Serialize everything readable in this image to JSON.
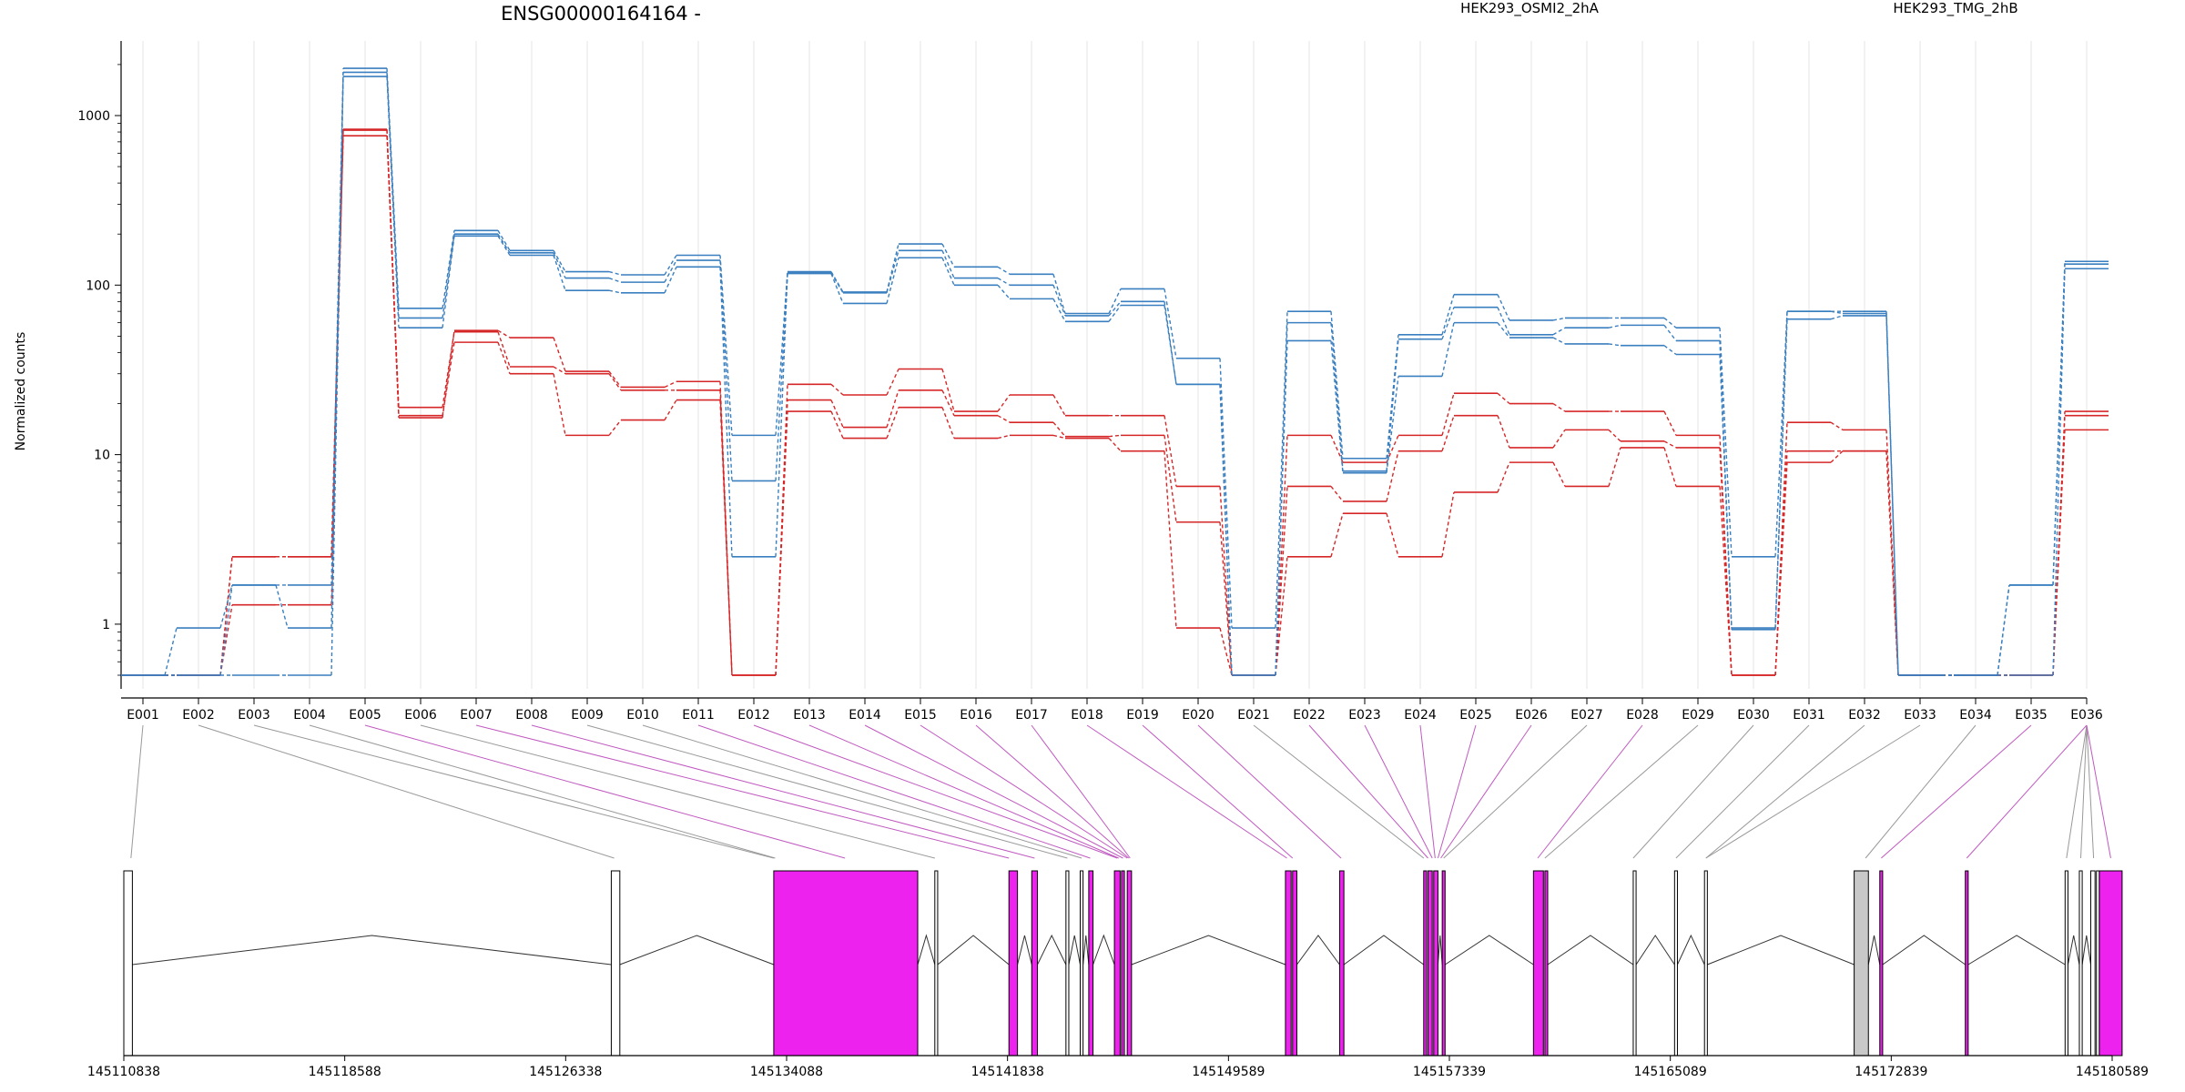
{
  "chart_data": {
    "type": "line",
    "title": "ENSG00000164164 -",
    "ylabel": "Normalized counts",
    "xlabel": "",
    "y_scale": "log",
    "ylim": [
      0.5,
      2500
    ],
    "y_ticks": [
      1,
      10,
      100,
      1000
    ],
    "grid": "vertical",
    "legend_position": "top",
    "categories": [
      "E001",
      "E002",
      "E003",
      "E004",
      "E005",
      "E006",
      "E007",
      "E008",
      "E009",
      "E010",
      "E011",
      "E012",
      "E013",
      "E014",
      "E015",
      "E016",
      "E017",
      "E018",
      "E019",
      "E020",
      "E021",
      "E022",
      "E023",
      "E024",
      "E025",
      "E026",
      "E027",
      "E028",
      "E029",
      "E030",
      "E031",
      "E032",
      "E033",
      "E034",
      "E035",
      "E036"
    ],
    "groups": [
      {
        "name": "HEK293_OSMI2_2hA",
        "color": "#d62728"
      },
      {
        "name": "HEK293_TMG_2hB",
        "color": "#3a7fbf"
      }
    ],
    "series": [
      {
        "group": 0,
        "values": [
          0.5,
          0.5,
          1.3,
          1.3,
          820,
          17,
          46,
          30,
          13,
          16,
          21,
          0.5,
          18,
          12.5,
          19,
          12.5,
          13,
          12.5,
          10.5,
          0.95,
          0.5,
          2.5,
          4.5,
          2.5,
          6,
          9,
          6.5,
          11,
          6.5,
          0.5,
          9,
          10.5,
          0.5,
          0.5,
          0.5,
          14
        ]
      },
      {
        "group": 0,
        "values": [
          0.5,
          0.5,
          2.5,
          2.5,
          830,
          19,
          53,
          33,
          30,
          24,
          24,
          0.5,
          21,
          14.5,
          24,
          17,
          15.5,
          12.8,
          13,
          4,
          0.5,
          6.5,
          5.3,
          10.5,
          17,
          11,
          14,
          12,
          11,
          0.5,
          10.5,
          10.5,
          0.5,
          0.5,
          0.5,
          17
        ]
      },
      {
        "group": 0,
        "values": [
          0.5,
          0.5,
          2.5,
          2.5,
          760,
          16.5,
          54,
          49,
          31,
          25,
          27,
          0.5,
          26,
          22.5,
          32,
          18,
          22.5,
          17,
          17,
          6.5,
          0.5,
          13,
          9,
          13,
          23,
          20,
          18,
          18,
          13,
          0.5,
          15.5,
          14,
          0.5,
          0.5,
          0.5,
          18
        ]
      },
      {
        "group": 1,
        "values": [
          0.5,
          0.95,
          1.7,
          1.7,
          1900,
          73,
          210,
          160,
          120,
          115,
          150,
          13,
          120,
          91,
          175,
          128,
          116,
          68,
          95,
          37,
          0.95,
          70,
          9.5,
          51,
          88,
          62,
          64,
          64,
          56,
          2.5,
          70,
          70,
          0.5,
          0.5,
          1.7,
          138
        ]
      },
      {
        "group": 1,
        "values": [
          0.5,
          0.5,
          1.7,
          0.95,
          1800,
          64,
          200,
          155,
          110,
          104,
          140,
          7,
          118,
          90,
          160,
          110,
          100,
          66,
          80,
          26,
          0.5,
          60,
          8,
          48,
          74,
          51,
          56,
          58,
          47,
          0.95,
          70,
          68,
          0.5,
          0.5,
          1.7,
          133
        ]
      },
      {
        "group": 1,
        "values": [
          0.5,
          0.5,
          0.5,
          0.5,
          1700,
          56,
          195,
          150,
          93,
          90,
          128,
          2.5,
          117,
          78,
          145,
          100,
          83,
          61,
          76,
          26,
          0.5,
          47,
          7.8,
          29,
          60,
          49,
          45,
          44,
          39,
          0.93,
          63,
          66,
          0.5,
          0.5,
          0.5,
          125
        ]
      }
    ],
    "genomic_ticks": [
      "145110838",
      "145118588",
      "145126338",
      "145134088",
      "145141838",
      "145149589",
      "145157339",
      "145165089",
      "145172839",
      "145180589"
    ],
    "gene_model": {
      "range": [
        145110838,
        145180589
      ],
      "exon_color_default": "#ffffff",
      "exon_color_highlight": "#ee22ee",
      "exon_color_other": "#c8c8c8",
      "exons": [
        {
          "s": 145110838,
          "e": 145111138,
          "c": "white"
        },
        {
          "s": 145127938,
          "e": 145128238,
          "c": "white"
        },
        {
          "s": 145133638,
          "e": 145138688,
          "c": "magenta"
        },
        {
          "s": 145139288,
          "e": 145139388,
          "c": "white"
        },
        {
          "s": 145141888,
          "e": 145142188,
          "c": "magenta"
        },
        {
          "s": 145142688,
          "e": 145142888,
          "c": "magenta"
        },
        {
          "s": 145143888,
          "e": 145143988,
          "c": "white"
        },
        {
          "s": 145144388,
          "e": 145144488,
          "c": "white"
        },
        {
          "s": 145144688,
          "e": 145144838,
          "c": "magenta"
        },
        {
          "s": 145145588,
          "e": 145145788,
          "c": "magenta"
        },
        {
          "s": 145145838,
          "e": 145145938,
          "c": "magenta"
        },
        {
          "s": 145146038,
          "e": 145146188,
          "c": "magenta"
        },
        {
          "s": 145151588,
          "e": 145151788,
          "c": "magenta"
        },
        {
          "s": 145151838,
          "e": 145151988,
          "c": "magenta"
        },
        {
          "s": 145153488,
          "e": 145153638,
          "c": "magenta"
        },
        {
          "s": 145156438,
          "e": 145156538,
          "c": "magenta"
        },
        {
          "s": 145156588,
          "e": 145156738,
          "c": "magenta"
        },
        {
          "s": 145156788,
          "e": 145156938,
          "c": "magenta"
        },
        {
          "s": 145157088,
          "e": 145157188,
          "c": "magenta"
        },
        {
          "s": 145160288,
          "e": 145160638,
          "c": "magenta"
        },
        {
          "s": 145160688,
          "e": 145160788,
          "c": "magenta"
        },
        {
          "s": 145163788,
          "e": 145163888,
          "c": "white"
        },
        {
          "s": 145165238,
          "e": 145165338,
          "c": "white"
        },
        {
          "s": 145166288,
          "e": 145166388,
          "c": "white"
        },
        {
          "s": 145171538,
          "e": 145172038,
          "c": "gray"
        },
        {
          "s": 145172438,
          "e": 145172538,
          "c": "magenta"
        },
        {
          "s": 145175438,
          "e": 145175538,
          "c": "magenta"
        },
        {
          "s": 145178938,
          "e": 145179038,
          "c": "white"
        },
        {
          "s": 145179438,
          "e": 145179538,
          "c": "white"
        },
        {
          "s": 145179838,
          "e": 145179988,
          "c": "white"
        },
        {
          "s": 145180038,
          "e": 145180138,
          "c": "white"
        },
        {
          "s": 145180138,
          "e": 145180938,
          "c": "magenta"
        }
      ],
      "connectors": [
        {
          "exon": 1,
          "gx": 145111088,
          "c": "gray"
        },
        {
          "exon": 2,
          "gx": 145128038,
          "c": "gray"
        },
        {
          "exon": 3,
          "gx": 145133638,
          "c": "gray"
        },
        {
          "exon": 4,
          "gx": 145133688,
          "c": "gray"
        },
        {
          "exon": 5,
          "gx": 145136138,
          "c": "magenta"
        },
        {
          "exon": 6,
          "gx": 145139288,
          "c": "gray"
        },
        {
          "exon": 7,
          "gx": 145141888,
          "c": "magenta"
        },
        {
          "exon": 8,
          "gx": 145142788,
          "c": "magenta"
        },
        {
          "exon": 9,
          "gx": 145143938,
          "c": "gray"
        },
        {
          "exon": 10,
          "gx": 145144438,
          "c": "gray"
        },
        {
          "exon": 11,
          "gx": 145144738,
          "c": "magenta"
        },
        {
          "exon": 12,
          "gx": 145145688,
          "c": "magenta"
        },
        {
          "exon": 13,
          "gx": 145145738,
          "c": "magenta"
        },
        {
          "exon": 14,
          "gx": 145145888,
          "c": "magenta"
        },
        {
          "exon": 15,
          "gx": 145146038,
          "c": "magenta"
        },
        {
          "exon": 16,
          "gx": 145146088,
          "c": "magenta"
        },
        {
          "exon": 17,
          "gx": 145146138,
          "c": "magenta"
        },
        {
          "exon": 18,
          "gx": 145151638,
          "c": "magenta"
        },
        {
          "exon": 19,
          "gx": 145151838,
          "c": "magenta"
        },
        {
          "exon": 20,
          "gx": 145153538,
          "c": "magenta"
        },
        {
          "exon": 21,
          "gx": 145156438,
          "c": "gray"
        },
        {
          "exon": 22,
          "gx": 145156588,
          "c": "magenta"
        },
        {
          "exon": 23,
          "gx": 145156738,
          "c": "magenta"
        },
        {
          "exon": 24,
          "gx": 145156838,
          "c": "magenta"
        },
        {
          "exon": 25,
          "gx": 145156938,
          "c": "magenta"
        },
        {
          "exon": 26,
          "gx": 145157038,
          "c": "magenta"
        },
        {
          "exon": 27,
          "gx": 145157138,
          "c": "gray"
        },
        {
          "exon": 28,
          "gx": 145160438,
          "c": "magenta"
        },
        {
          "exon": 29,
          "gx": 145160688,
          "c": "gray"
        },
        {
          "exon": 30,
          "gx": 145163788,
          "c": "gray"
        },
        {
          "exon": 31,
          "gx": 145165288,
          "c": "gray"
        },
        {
          "exon": 32,
          "gx": 145166338,
          "c": "gray"
        },
        {
          "exon": 33,
          "gx": 145166338,
          "c": "gray"
        },
        {
          "exon": 34,
          "gx": 145171938,
          "c": "gray"
        },
        {
          "exon": 35,
          "gx": 145172488,
          "c": "magenta"
        },
        {
          "exon": 36,
          "gx": 145175488,
          "c": "magenta"
        },
        {
          "exon": 37,
          "gx": 145178988,
          "c": "gray"
        },
        {
          "exon": 38,
          "gx": 145179488,
          "c": "gray"
        },
        {
          "exon": 39,
          "gx": 145179938,
          "c": "gray"
        },
        {
          "exon": 40,
          "gx": 145180538,
          "c": "magenta"
        }
      ]
    }
  }
}
